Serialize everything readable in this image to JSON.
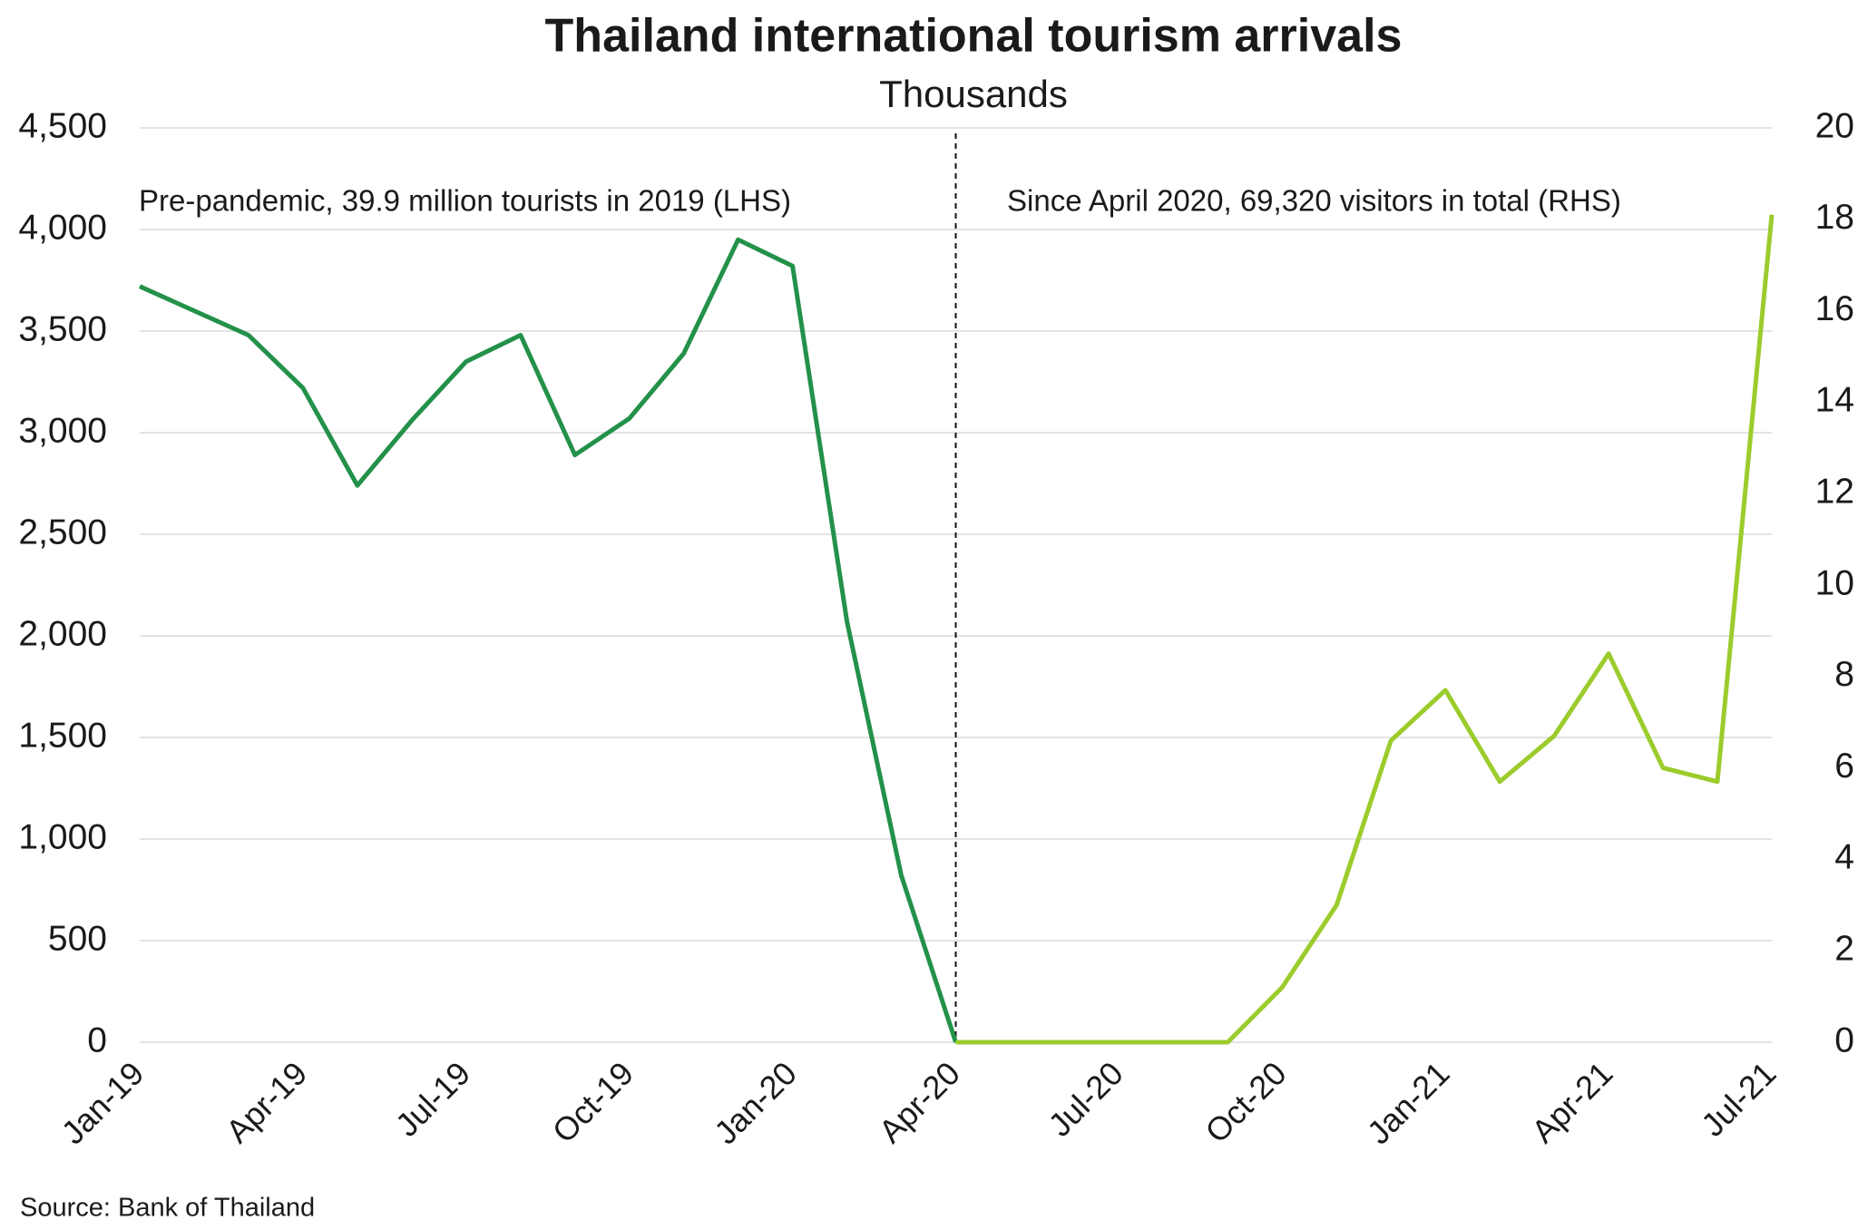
{
  "chart_data": {
    "type": "line",
    "title": "Thailand international tourism arrivals",
    "subtitle": "Thousands",
    "annotations": [
      "Pre-pandemic,  39.9 million  tourists in 2019 (LHS)",
      "Since April 2020, 69,320 visitors in total (RHS)"
    ],
    "source": "Source: Bank of Thailand",
    "categories": [
      "Jan-19",
      null,
      null,
      "Apr-19",
      null,
      null,
      "Jul-19",
      null,
      null,
      "Oct-19",
      null,
      null,
      "Jan-20",
      null,
      null,
      "Apr-20",
      null,
      null,
      "Jul-20",
      null,
      null,
      "Oct-20",
      null,
      null,
      "Jan-21",
      null,
      null,
      "Apr-21",
      null,
      null,
      "Jul-21"
    ],
    "series": [
      {
        "color": "#23914a",
        "values": [
          3720,
          3600,
          3480,
          3220,
          2740,
          3060,
          3350,
          3480,
          2890,
          3070,
          3390,
          3950,
          3820,
          2070,
          820,
          0,
          null,
          null,
          null,
          null,
          null,
          null,
          null,
          null,
          null,
          null,
          null,
          null,
          null,
          null,
          null
        ]
      },
      {
        "color": "#9ccc2c",
        "axis": "y2",
        "values": [
          null,
          null,
          null,
          null,
          null,
          null,
          null,
          null,
          null,
          null,
          null,
          null,
          null,
          null,
          null,
          0,
          0,
          0,
          0,
          0,
          0,
          1.2,
          3.0,
          6.6,
          7.7,
          5.7,
          6.7,
          8.5,
          6.0,
          5.7,
          18.1
        ]
      }
    ],
    "ylim": [
      0,
      4500
    ],
    "yticks": [
      0,
      500,
      {
        "value": 1000,
        "label": "1,000"
      },
      {
        "value": 1500,
        "label": "1,500"
      },
      {
        "value": 2000,
        "label": "2,000"
      },
      {
        "value": 2500,
        "label": "2,500"
      },
      {
        "value": 3000,
        "label": "3,000"
      },
      {
        "value": 3500,
        "label": "3,500"
      },
      {
        "value": 4000,
        "label": "4,000"
      },
      {
        "value": 4500,
        "label": "4,500"
      }
    ],
    "y2lim": [
      0,
      20
    ],
    "y2ticks": [
      0,
      2,
      4,
      6,
      8,
      10,
      12,
      14,
      16,
      18,
      20
    ],
    "grid": true
  }
}
